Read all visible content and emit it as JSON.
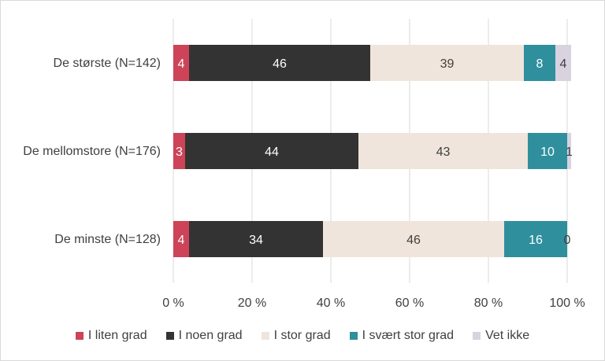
{
  "chart_data": {
    "type": "bar",
    "orientation": "horizontal",
    "stacked": true,
    "percent_stacked": true,
    "categories": [
      "De største (N=142)",
      "De mellomstore (N=176)",
      "De minste (N=128)"
    ],
    "series": [
      {
        "name": "I liten grad",
        "values": [
          4,
          3,
          4
        ],
        "color": "#cd4358",
        "label_color": "#ffffff"
      },
      {
        "name": "I noen grad",
        "values": [
          46,
          44,
          34
        ],
        "color": "#333333",
        "label_color": "#ffffff"
      },
      {
        "name": "I stor grad",
        "values": [
          39,
          43,
          46
        ],
        "color": "#efe5dc",
        "label_color": "#404040"
      },
      {
        "name": "I svært stor grad",
        "values": [
          8,
          10,
          16
        ],
        "color": "#2f8f9d",
        "label_color": "#ffffff"
      },
      {
        "name": "Vet ikke",
        "values": [
          4,
          1,
          0
        ],
        "color": "#d9d3e0",
        "label_color": "#404040"
      }
    ],
    "x_ticks": [
      "0 %",
      "20 %",
      "40 %",
      "60 %",
      "80 %",
      "100 %"
    ],
    "xlim": [
      0,
      100
    ],
    "grid": true,
    "legend_position": "bottom"
  }
}
